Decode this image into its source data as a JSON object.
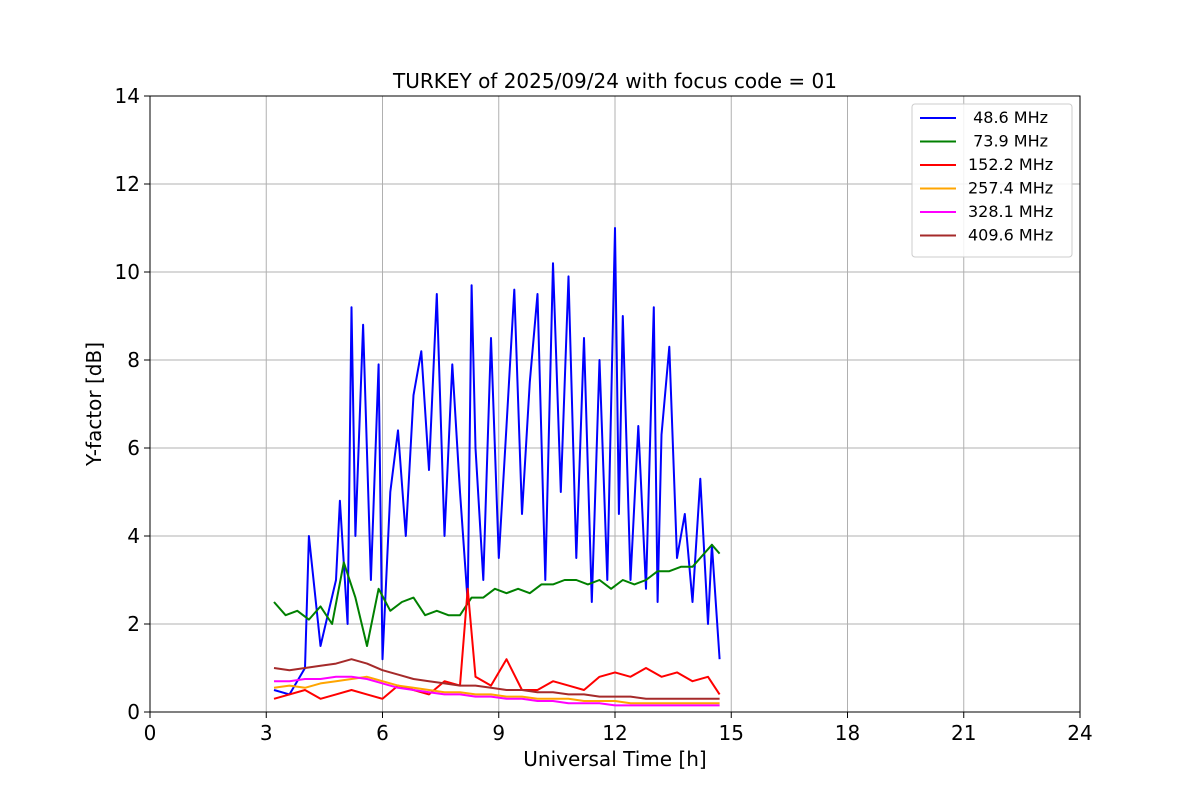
{
  "chart_data": {
    "type": "line",
    "title": "TURKEY of 2025/09/24 with focus code = 01",
    "xlabel": "Universal Time [h]",
    "ylabel": "Y-factor [dB]",
    "xlim": [
      0,
      24
    ],
    "ylim": [
      0,
      14
    ],
    "xticks": [
      0,
      3,
      6,
      9,
      12,
      15,
      18,
      21,
      24
    ],
    "yticks": [
      0,
      2,
      4,
      6,
      8,
      10,
      12,
      14
    ],
    "grid": true,
    "legend_position": "top-right",
    "series": [
      {
        "name": " 48.6 MHz",
        "color": "#0000ff",
        "x": [
          3.2,
          3.6,
          4.0,
          4.1,
          4.4,
          4.8,
          4.9,
          5.1,
          5.2,
          5.3,
          5.5,
          5.7,
          5.9,
          6.0,
          6.2,
          6.4,
          6.6,
          6.8,
          7.0,
          7.2,
          7.4,
          7.6,
          7.8,
          8.0,
          8.2,
          8.3,
          8.4,
          8.6,
          8.8,
          9.0,
          9.2,
          9.4,
          9.6,
          9.8,
          10.0,
          10.2,
          10.4,
          10.6,
          10.8,
          11.0,
          11.2,
          11.4,
          11.6,
          11.8,
          12.0,
          12.1,
          12.2,
          12.4,
          12.6,
          12.8,
          13.0,
          13.1,
          13.2,
          13.4,
          13.6,
          13.8,
          14.0,
          14.2,
          14.4,
          14.5,
          14.7
        ],
        "y": [
          0.5,
          0.4,
          1.0,
          4.0,
          1.5,
          3.0,
          4.8,
          2.0,
          9.2,
          4.0,
          8.8,
          3.0,
          7.9,
          1.2,
          5.0,
          6.4,
          4.0,
          7.2,
          8.2,
          5.5,
          9.5,
          4.0,
          7.9,
          5.0,
          2.5,
          9.7,
          6.0,
          3.0,
          8.5,
          3.5,
          6.5,
          9.6,
          4.5,
          7.5,
          9.5,
          3.0,
          10.2,
          5.0,
          9.9,
          3.5,
          8.5,
          2.5,
          8.0,
          3.0,
          11.0,
          4.5,
          9.0,
          3.0,
          6.5,
          2.8,
          9.2,
          2.5,
          6.3,
          8.3,
          3.5,
          4.5,
          2.5,
          5.3,
          2.0,
          3.8,
          1.2
        ]
      },
      {
        "name": " 73.9 MHz",
        "color": "#008000",
        "x": [
          3.2,
          3.5,
          3.8,
          4.1,
          4.4,
          4.7,
          5.0,
          5.3,
          5.6,
          5.9,
          6.2,
          6.5,
          6.8,
          7.1,
          7.4,
          7.7,
          8.0,
          8.3,
          8.6,
          8.9,
          9.2,
          9.5,
          9.8,
          10.1,
          10.4,
          10.7,
          11.0,
          11.3,
          11.6,
          11.9,
          12.2,
          12.5,
          12.8,
          13.1,
          13.4,
          13.7,
          14.0,
          14.3,
          14.5,
          14.7
        ],
        "y": [
          2.5,
          2.2,
          2.3,
          2.1,
          2.4,
          2.0,
          3.4,
          2.6,
          1.5,
          2.8,
          2.3,
          2.5,
          2.6,
          2.2,
          2.3,
          2.2,
          2.2,
          2.6,
          2.6,
          2.8,
          2.7,
          2.8,
          2.7,
          2.9,
          2.9,
          3.0,
          3.0,
          2.9,
          3.0,
          2.8,
          3.0,
          2.9,
          3.0,
          3.2,
          3.2,
          3.3,
          3.3,
          3.6,
          3.8,
          3.6
        ]
      },
      {
        "name": "152.2 MHz",
        "color": "#ff0000",
        "x": [
          3.2,
          3.6,
          4.0,
          4.4,
          4.8,
          5.2,
          5.6,
          6.0,
          6.4,
          6.8,
          7.2,
          7.6,
          8.0,
          8.2,
          8.4,
          8.8,
          9.2,
          9.6,
          10.0,
          10.4,
          10.8,
          11.2,
          11.6,
          12.0,
          12.4,
          12.8,
          13.2,
          13.6,
          14.0,
          14.4,
          14.7
        ],
        "y": [
          0.3,
          0.4,
          0.5,
          0.3,
          0.4,
          0.5,
          0.4,
          0.3,
          0.6,
          0.5,
          0.4,
          0.7,
          0.6,
          2.8,
          0.8,
          0.6,
          1.2,
          0.5,
          0.5,
          0.7,
          0.6,
          0.5,
          0.8,
          0.9,
          0.8,
          1.0,
          0.8,
          0.9,
          0.7,
          0.8,
          0.4
        ]
      },
      {
        "name": "257.4 MHz",
        "color": "#ffa500",
        "x": [
          3.2,
          3.6,
          4.0,
          4.4,
          4.8,
          5.2,
          5.6,
          6.0,
          6.4,
          6.8,
          7.2,
          7.6,
          8.0,
          8.4,
          8.8,
          9.2,
          9.6,
          10.0,
          10.4,
          10.8,
          11.2,
          11.6,
          12.0,
          12.4,
          12.8,
          13.2,
          13.6,
          14.0,
          14.4,
          14.7
        ],
        "y": [
          0.55,
          0.6,
          0.55,
          0.65,
          0.7,
          0.75,
          0.8,
          0.7,
          0.6,
          0.55,
          0.5,
          0.45,
          0.45,
          0.4,
          0.4,
          0.35,
          0.35,
          0.3,
          0.3,
          0.3,
          0.25,
          0.25,
          0.25,
          0.2,
          0.2,
          0.2,
          0.2,
          0.2,
          0.2,
          0.2
        ]
      },
      {
        "name": "328.1 MHz",
        "color": "#ff00ff",
        "x": [
          3.2,
          3.6,
          4.0,
          4.4,
          4.8,
          5.2,
          5.6,
          6.0,
          6.4,
          6.8,
          7.2,
          7.6,
          8.0,
          8.4,
          8.8,
          9.2,
          9.6,
          10.0,
          10.4,
          10.8,
          11.2,
          11.6,
          12.0,
          12.4,
          12.8,
          13.2,
          13.6,
          14.0,
          14.4,
          14.7
        ],
        "y": [
          0.7,
          0.7,
          0.75,
          0.75,
          0.8,
          0.8,
          0.75,
          0.65,
          0.55,
          0.5,
          0.45,
          0.4,
          0.4,
          0.35,
          0.35,
          0.3,
          0.3,
          0.25,
          0.25,
          0.2,
          0.2,
          0.2,
          0.15,
          0.15,
          0.15,
          0.15,
          0.15,
          0.15,
          0.15,
          0.15
        ]
      },
      {
        "name": "409.6 MHz",
        "color": "#a52a2a",
        "x": [
          3.2,
          3.6,
          4.0,
          4.4,
          4.8,
          5.2,
          5.6,
          6.0,
          6.4,
          6.8,
          7.2,
          7.6,
          8.0,
          8.4,
          8.8,
          9.2,
          9.6,
          10.0,
          10.4,
          10.8,
          11.2,
          11.6,
          12.0,
          12.4,
          12.8,
          13.2,
          13.6,
          14.0,
          14.4,
          14.7
        ],
        "y": [
          1.0,
          0.95,
          1.0,
          1.05,
          1.1,
          1.2,
          1.1,
          0.95,
          0.85,
          0.75,
          0.7,
          0.65,
          0.6,
          0.6,
          0.55,
          0.5,
          0.5,
          0.45,
          0.45,
          0.4,
          0.4,
          0.35,
          0.35,
          0.35,
          0.3,
          0.3,
          0.3,
          0.3,
          0.3,
          0.3
        ]
      }
    ]
  }
}
